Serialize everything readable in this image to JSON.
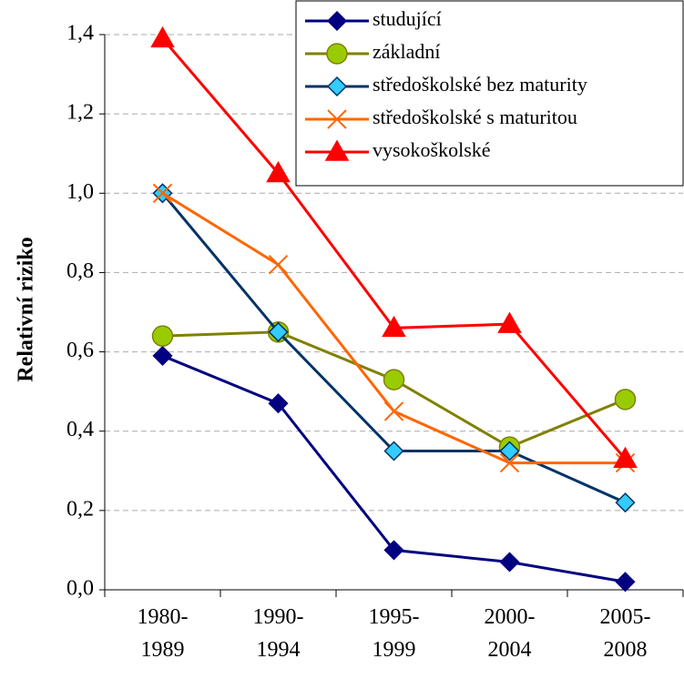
{
  "chart_data": {
    "type": "line",
    "y_label": "Relativní riziko",
    "categories": [
      "1980-1989",
      "1990-1994",
      "1995-1999",
      "2000-2004",
      "2005-2008"
    ],
    "series": [
      {
        "name": "studující",
        "color": "#000080",
        "marker_fill": "#000080",
        "marker": "diamond",
        "values": [
          0.59,
          0.47,
          0.1,
          0.07,
          0.02
        ]
      },
      {
        "name": "základní",
        "color": "#808000",
        "marker_fill": "#99cc00",
        "marker": "circle",
        "values": [
          0.64,
          0.65,
          0.53,
          0.36,
          0.48
        ]
      },
      {
        "name": "středoškolské bez maturity",
        "color": "#003366",
        "marker_fill": "#33ccff",
        "marker": "diamond",
        "values": [
          1.0,
          0.65,
          0.35,
          0.35,
          0.22
        ]
      },
      {
        "name": "středoškolské s maturitou",
        "color": "#ff6600",
        "marker_fill": "#ff6600",
        "marker": "x",
        "values": [
          1.0,
          0.82,
          0.45,
          0.32,
          0.32
        ]
      },
      {
        "name": "vysokoškolské",
        "color": "#ff0000",
        "marker_fill": "#ff0000",
        "marker": "triangle",
        "values": [
          1.39,
          1.05,
          0.66,
          0.67,
          0.33
        ]
      }
    ],
    "ylim": [
      0,
      1.4
    ],
    "yticks": [
      {
        "value": 0,
        "label": "0,0"
      },
      {
        "value": 0.2,
        "label": "0,2"
      },
      {
        "value": 0.4,
        "label": "0,4"
      },
      {
        "value": 0.6,
        "label": "0,6"
      },
      {
        "value": 0.8,
        "label": "0,8"
      },
      {
        "value": 1.0,
        "label": "1,0"
      },
      {
        "value": 1.2,
        "label": "1,2"
      },
      {
        "value": 1.4,
        "label": "1,4"
      }
    ],
    "grid": true,
    "legend": "upper right"
  }
}
